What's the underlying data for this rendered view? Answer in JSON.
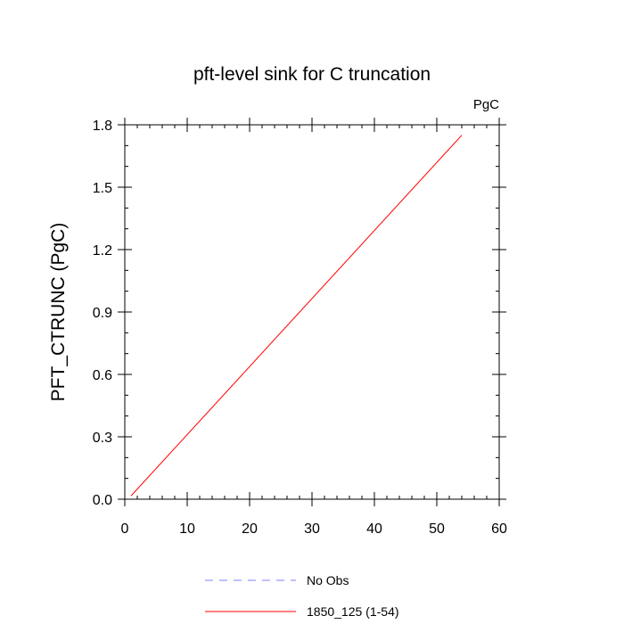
{
  "chart_data": {
    "type": "line",
    "title": "pft-level sink for C truncation",
    "unit_label": "PgC",
    "xlabel": "",
    "ylabel": "PFT_CTRUNC  (PgC)",
    "xlim": [
      0,
      60
    ],
    "ylim": [
      0,
      1.8
    ],
    "x_ticks": [
      0,
      10,
      20,
      30,
      40,
      50,
      60
    ],
    "x_tick_labels": [
      "0",
      "10",
      "20",
      "30",
      "40",
      "50",
      "60"
    ],
    "y_ticks": [
      0,
      0.3,
      0.6,
      0.9,
      1.2,
      1.5,
      1.8
    ],
    "y_tick_labels": [
      "0.0",
      "0.3",
      "0.6",
      "0.9",
      "1.2",
      "1.5",
      "1.8"
    ],
    "grid": false,
    "legend_position": "bottom",
    "series": [
      {
        "name": "No Obs",
        "color": "#8080ff",
        "dash": "dashed",
        "x": [],
        "y": []
      },
      {
        "name": "1850_125 (1-54)",
        "color": "#ff0000",
        "dash": "solid",
        "x": [
          1,
          54
        ],
        "y": [
          0.016,
          1.75
        ]
      }
    ]
  }
}
